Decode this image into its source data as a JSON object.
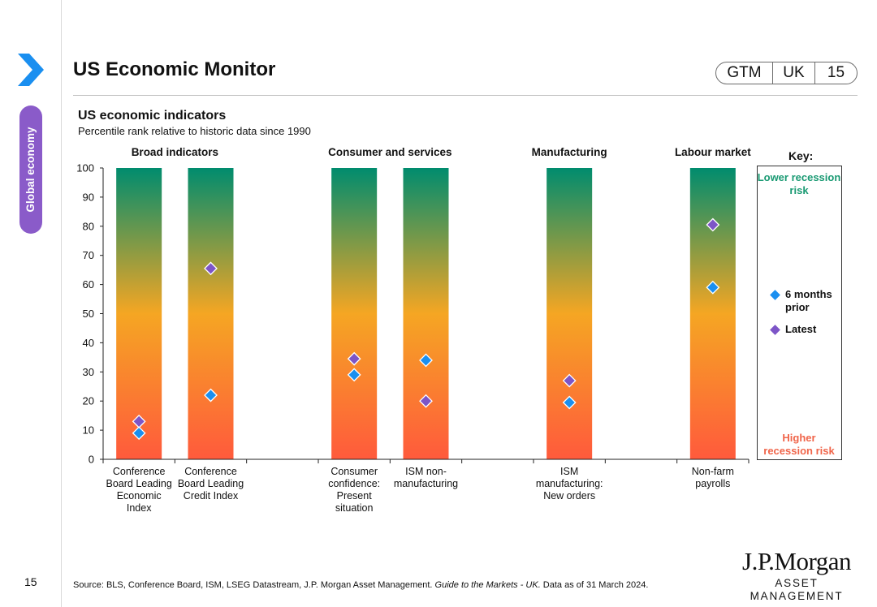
{
  "sidebar": {
    "section_label": "Global economy",
    "page_number": "15"
  },
  "header": {
    "title": "US Economic Monitor",
    "badge": [
      "GTM",
      "UK",
      "15"
    ]
  },
  "chart_data": {
    "type": "scatter",
    "title": "US economic indicators",
    "subtitle": "Percentile rank relative to historic data since 1990",
    "ylim": [
      0,
      100
    ],
    "y_ticks": [
      "0",
      "10",
      "20",
      "30",
      "40",
      "50",
      "60",
      "70",
      "80",
      "90",
      "100"
    ],
    "groups": [
      {
        "label": "Broad indicators",
        "start": 0,
        "end": 1
      },
      {
        "label": "Consumer and services",
        "start": 3,
        "end": 4
      },
      {
        "label": "Manufacturing",
        "start": 6,
        "end": 6
      },
      {
        "label": "Labour market",
        "start": 8,
        "end": 8
      }
    ],
    "categories": [
      {
        "slot": 0,
        "label": [
          "Conference",
          "Board Leading",
          "Economic",
          "Index"
        ]
      },
      {
        "slot": 1,
        "label": [
          "Conference",
          "Board Leading",
          "Credit Index"
        ]
      },
      {
        "slot": 3,
        "label": [
          "Consumer",
          "confidence:",
          "Present",
          "situation"
        ]
      },
      {
        "slot": 4,
        "label": [
          "ISM non-",
          "manufacturing"
        ]
      },
      {
        "slot": 6,
        "label": [
          "ISM",
          "manufacturing:",
          "New orders"
        ]
      },
      {
        "slot": 8,
        "label": [
          "Non-farm",
          "payrolls"
        ]
      }
    ],
    "series": [
      {
        "name": "6 months prior",
        "color": "#1a8ff0",
        "values": [
          9,
          22,
          29,
          34,
          19.5,
          59
        ]
      },
      {
        "name": "Latest",
        "color": "#7d55c7",
        "values": [
          13,
          65.5,
          34.5,
          20,
          27,
          80.5
        ]
      }
    ],
    "gradient": [
      "#008c6e",
      "#f5a623",
      "#ff5a3c"
    ],
    "key": {
      "title": "Key:",
      "low": "Lower recession risk",
      "high": "Higher recession risk"
    }
  },
  "legend": [
    {
      "name": "6 months prior",
      "color": "#1a8ff0"
    },
    {
      "name": "Latest",
      "color": "#7d55c7"
    }
  ],
  "footer": {
    "source_prefix": "Source: BLS, Conference Board, ISM, LSEG Datastream, J.P. Morgan Asset Management. ",
    "source_italic": "Guide to the Markets - UK.",
    "source_suffix": " Data as of 31 March 2024.",
    "logo_name": "J.P.Morgan",
    "logo_sub": "ASSET MANAGEMENT"
  },
  "colors": {
    "accent": "#1a8ff0",
    "tab": "#8a5bc9",
    "low_risk": "#1a9a73",
    "high_risk": "#f0654a"
  }
}
